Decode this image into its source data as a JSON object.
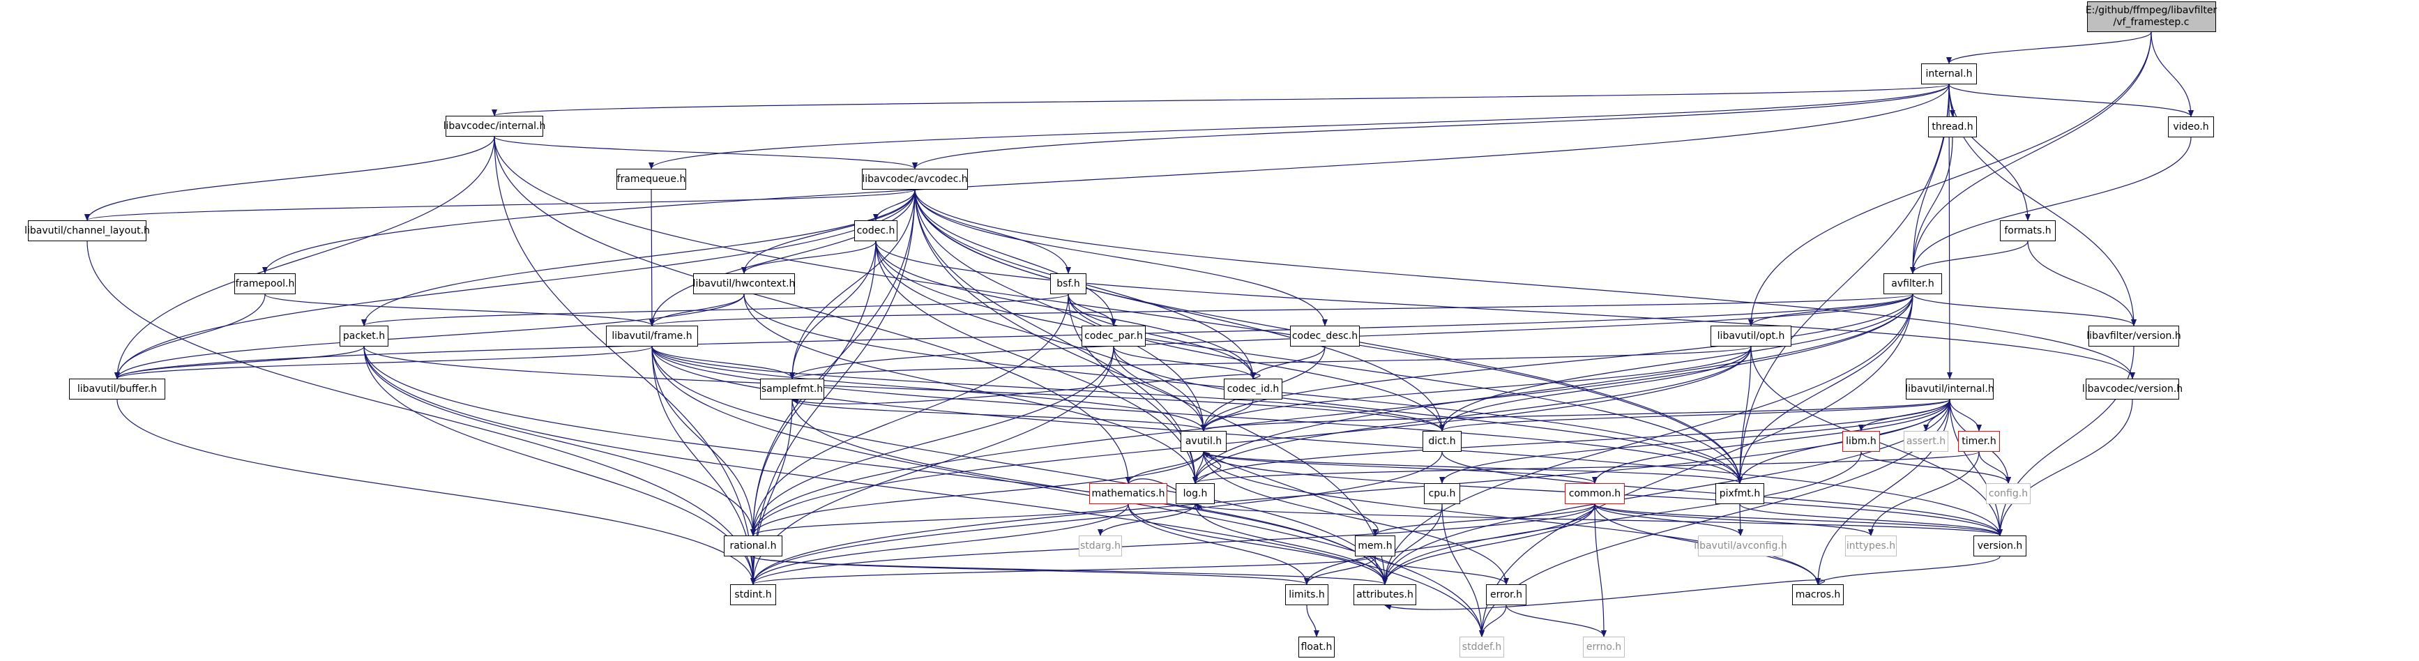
{
  "graph": {
    "root_label_line1": "E:/github/ffmpeg/libavfilter",
    "root_label_line2": "/vf_framestep.c",
    "edge_color": "#191970",
    "root_fill": "#bfbfbf",
    "truncated_border": "#ff0000",
    "external_border": "#bfbfbf",
    "nodes": [
      {
        "id": "root",
        "label": "E:/github/ffmpeg/libavfilter/vf_framestep.c",
        "kind": "root"
      },
      {
        "id": "internal_h",
        "label": "internal.h",
        "kind": "doc"
      },
      {
        "id": "avcodec_internal",
        "label": "libavcodec/internal.h",
        "kind": "doc"
      },
      {
        "id": "thread_h",
        "label": "thread.h",
        "kind": "doc"
      },
      {
        "id": "video_h",
        "label": "video.h",
        "kind": "doc"
      },
      {
        "id": "framequeue_h",
        "label": "framequeue.h",
        "kind": "doc"
      },
      {
        "id": "avcodec_h",
        "label": "libavcodec/avcodec.h",
        "kind": "doc"
      },
      {
        "id": "channel_layout",
        "label": "libavutil/channel_layout.h",
        "kind": "doc"
      },
      {
        "id": "codec_h",
        "label": "codec.h",
        "kind": "doc"
      },
      {
        "id": "formats_h",
        "label": "formats.h",
        "kind": "doc"
      },
      {
        "id": "framepool_h",
        "label": "framepool.h",
        "kind": "doc"
      },
      {
        "id": "hwcontext_h",
        "label": "libavutil/hwcontext.h",
        "kind": "doc"
      },
      {
        "id": "bsf_h",
        "label": "bsf.h",
        "kind": "doc"
      },
      {
        "id": "avfilter_h",
        "label": "avfilter.h",
        "kind": "doc"
      },
      {
        "id": "packet_h",
        "label": "packet.h",
        "kind": "doc"
      },
      {
        "id": "frame_h",
        "label": "libavutil/frame.h",
        "kind": "doc"
      },
      {
        "id": "codec_par",
        "label": "codec_par.h",
        "kind": "doc"
      },
      {
        "id": "codec_desc",
        "label": "codec_desc.h",
        "kind": "doc"
      },
      {
        "id": "opt_h",
        "label": "libavutil/opt.h",
        "kind": "doc"
      },
      {
        "id": "lavfi_version",
        "label": "libavfilter/version.h",
        "kind": "doc"
      },
      {
        "id": "buffer_h",
        "label": "libavutil/buffer.h",
        "kind": "doc"
      },
      {
        "id": "samplefmt_h",
        "label": "samplefmt.h",
        "kind": "doc"
      },
      {
        "id": "codec_id",
        "label": "codec_id.h",
        "kind": "doc"
      },
      {
        "id": "lavc_version",
        "label": "libavcodec/version.h",
        "kind": "doc"
      },
      {
        "id": "lavu_internal",
        "label": "libavutil/internal.h",
        "kind": "doc"
      },
      {
        "id": "avutil_h",
        "label": "avutil.h",
        "kind": "doc"
      },
      {
        "id": "dict_h",
        "label": "dict.h",
        "kind": "doc"
      },
      {
        "id": "libm_h",
        "label": "libm.h",
        "kind": "truncated"
      },
      {
        "id": "assert_h",
        "label": "assert.h",
        "kind": "external"
      },
      {
        "id": "timer_h",
        "label": "timer.h",
        "kind": "truncated"
      },
      {
        "id": "mathematics_h",
        "label": "mathematics.h",
        "kind": "truncated"
      },
      {
        "id": "log_h",
        "label": "log.h",
        "kind": "doc"
      },
      {
        "id": "cpu_h",
        "label": "cpu.h",
        "kind": "doc"
      },
      {
        "id": "common_h",
        "label": "common.h",
        "kind": "truncated"
      },
      {
        "id": "pixfmt_h",
        "label": "pixfmt.h",
        "kind": "doc"
      },
      {
        "id": "config_h",
        "label": "config.h",
        "kind": "external"
      },
      {
        "id": "rational_h",
        "label": "rational.h",
        "kind": "doc"
      },
      {
        "id": "stdarg_h",
        "label": "stdarg.h",
        "kind": "external"
      },
      {
        "id": "mem_h",
        "label": "mem.h",
        "kind": "doc"
      },
      {
        "id": "avconfig_h",
        "label": "libavutil/avconfig.h",
        "kind": "external"
      },
      {
        "id": "inttypes_h",
        "label": "inttypes.h",
        "kind": "external"
      },
      {
        "id": "version_h",
        "label": "version.h",
        "kind": "doc"
      },
      {
        "id": "stdint_h",
        "label": "stdint.h",
        "kind": "doc"
      },
      {
        "id": "limits_h",
        "label": "limits.h",
        "kind": "doc"
      },
      {
        "id": "attributes_h",
        "label": "attributes.h",
        "kind": "doc"
      },
      {
        "id": "error_h",
        "label": "error.h",
        "kind": "doc"
      },
      {
        "id": "macros_h",
        "label": "macros.h",
        "kind": "doc"
      },
      {
        "id": "float_h",
        "label": "float.h",
        "kind": "doc"
      },
      {
        "id": "stddef_h",
        "label": "stddef.h",
        "kind": "external"
      },
      {
        "id": "errno_h",
        "label": "errno.h",
        "kind": "external"
      }
    ],
    "edges": [
      [
        "root",
        "internal_h"
      ],
      [
        "root",
        "video_h"
      ],
      [
        "root",
        "avfilter_h"
      ],
      [
        "root",
        "opt_h"
      ],
      [
        "internal_h",
        "avcodec_internal"
      ],
      [
        "internal_h",
        "thread_h"
      ],
      [
        "internal_h",
        "video_h"
      ],
      [
        "internal_h",
        "framequeue_h"
      ],
      [
        "internal_h",
        "avcodec_h"
      ],
      [
        "internal_h",
        "formats_h"
      ],
      [
        "internal_h",
        "framepool_h"
      ],
      [
        "internal_h",
        "avfilter_h"
      ],
      [
        "internal_h",
        "lavfi_version"
      ],
      [
        "internal_h",
        "lavu_internal"
      ],
      [
        "internal_h",
        "pixfmt_h"
      ],
      [
        "avcodec_internal",
        "avcodec_h"
      ],
      [
        "avcodec_internal",
        "channel_layout"
      ],
      [
        "avcodec_internal",
        "buffer_h"
      ],
      [
        "avcodec_internal",
        "mathematics_h"
      ],
      [
        "avcodec_internal",
        "pixfmt_h"
      ],
      [
        "avcodec_internal",
        "stdint_h"
      ],
      [
        "thread_h",
        "avfilter_h"
      ],
      [
        "video_h",
        "avfilter_h"
      ],
      [
        "formats_h",
        "avfilter_h"
      ],
      [
        "formats_h",
        "lavfi_version"
      ],
      [
        "framequeue_h",
        "frame_h"
      ],
      [
        "avcodec_h",
        "codec_h"
      ],
      [
        "avcodec_h",
        "bsf_h"
      ],
      [
        "avcodec_h",
        "codec_desc"
      ],
      [
        "avcodec_h",
        "codec_par"
      ],
      [
        "avcodec_h",
        "codec_id"
      ],
      [
        "avcodec_h",
        "packet_h"
      ],
      [
        "avcodec_h",
        "lavc_version"
      ],
      [
        "avcodec_h",
        "samplefmt_h"
      ],
      [
        "avcodec_h",
        "frame_h"
      ],
      [
        "avcodec_h",
        "hwcontext_h"
      ],
      [
        "avcodec_h",
        "buffer_h"
      ],
      [
        "avcodec_h",
        "dict_h"
      ],
      [
        "avcodec_h",
        "avutil_h"
      ],
      [
        "avcodec_h",
        "log_h"
      ],
      [
        "avcodec_h",
        "pixfmt_h"
      ],
      [
        "avcodec_h",
        "rational_h"
      ],
      [
        "avcodec_h",
        "attributes_h"
      ],
      [
        "avcodec_h",
        "channel_layout"
      ],
      [
        "avcodec_h",
        "stdint_h"
      ],
      [
        "channel_layout",
        "stdint_h"
      ],
      [
        "codec_h",
        "hwcontext_h"
      ],
      [
        "codec_h",
        "codec_id"
      ],
      [
        "codec_h",
        "samplefmt_h"
      ],
      [
        "codec_h",
        "pixfmt_h"
      ],
      [
        "codec_h",
        "log_h"
      ],
      [
        "codec_h",
        "rational_h"
      ],
      [
        "codec_h",
        "avutil_h"
      ],
      [
        "codec_h",
        "lavc_version"
      ],
      [
        "framepool_h",
        "frame_h"
      ],
      [
        "framepool_h",
        "buffer_h"
      ],
      [
        "hwcontext_h",
        "buffer_h"
      ],
      [
        "hwcontext_h",
        "frame_h"
      ],
      [
        "hwcontext_h",
        "log_h"
      ],
      [
        "hwcontext_h",
        "pixfmt_h"
      ],
      [
        "bsf_h",
        "codec_id"
      ],
      [
        "bsf_h",
        "codec_par"
      ],
      [
        "bsf_h",
        "packet_h"
      ],
      [
        "bsf_h",
        "dict_h"
      ],
      [
        "bsf_h",
        "log_h"
      ],
      [
        "bsf_h",
        "rational_h"
      ],
      [
        "avfilter_h",
        "frame_h"
      ],
      [
        "avfilter_h",
        "opt_h"
      ],
      [
        "avfilter_h",
        "samplefmt_h"
      ],
      [
        "avfilter_h",
        "lavfi_version"
      ],
      [
        "avfilter_h",
        "avutil_h"
      ],
      [
        "avfilter_h",
        "dict_h"
      ],
      [
        "avfilter_h",
        "log_h"
      ],
      [
        "avfilter_h",
        "pixfmt_h"
      ],
      [
        "avfilter_h",
        "rational_h"
      ],
      [
        "avfilter_h",
        "attributes_h"
      ],
      [
        "avfilter_h",
        "stddef_h"
      ],
      [
        "avfilter_h",
        "buffer_h"
      ],
      [
        "packet_h",
        "buffer_h"
      ],
      [
        "packet_h",
        "rational_h"
      ],
      [
        "packet_h",
        "attributes_h"
      ],
      [
        "packet_h",
        "dict_h"
      ],
      [
        "packet_h",
        "stdint_h"
      ],
      [
        "packet_h",
        "stddef_h"
      ],
      [
        "frame_h",
        "buffer_h"
      ],
      [
        "frame_h",
        "avutil_h"
      ],
      [
        "frame_h",
        "dict_h"
      ],
      [
        "frame_h",
        "rational_h"
      ],
      [
        "frame_h",
        "samplefmt_h"
      ],
      [
        "frame_h",
        "pixfmt_h"
      ],
      [
        "frame_h",
        "version_h"
      ],
      [
        "frame_h",
        "stdint_h"
      ],
      [
        "frame_h",
        "stddef_h"
      ],
      [
        "frame_h",
        "attributes_h"
      ],
      [
        "codec_par",
        "codec_id"
      ],
      [
        "codec_par",
        "avutil_h"
      ],
      [
        "codec_par",
        "pixfmt_h"
      ],
      [
        "codec_par",
        "rational_h"
      ],
      [
        "codec_par",
        "stdint_h"
      ],
      [
        "codec_desc",
        "codec_id"
      ],
      [
        "codec_desc",
        "avutil_h"
      ],
      [
        "opt_h",
        "rational_h"
      ],
      [
        "opt_h",
        "avutil_h"
      ],
      [
        "opt_h",
        "dict_h"
      ],
      [
        "opt_h",
        "log_h"
      ],
      [
        "opt_h",
        "pixfmt_h"
      ],
      [
        "opt_h",
        "samplefmt_h"
      ],
      [
        "opt_h",
        "version_h"
      ],
      [
        "lavfi_version",
        "version_h"
      ],
      [
        "lavc_version",
        "version_h"
      ],
      [
        "buffer_h",
        "stdint_h"
      ],
      [
        "samplefmt_h",
        "avutil_h"
      ],
      [
        "samplefmt_h",
        "attributes_h"
      ],
      [
        "samplefmt_h",
        "stdint_h"
      ],
      [
        "codec_id",
        "avutil_h"
      ],
      [
        "codec_id",
        "samplefmt_h"
      ],
      [
        "lavu_internal",
        "timer_h"
      ],
      [
        "lavu_internal",
        "libm_h"
      ],
      [
        "lavu_internal",
        "assert_h"
      ],
      [
        "lavu_internal",
        "config_h"
      ],
      [
        "lavu_internal",
        "dict_h"
      ],
      [
        "lavu_internal",
        "pixfmt_h"
      ],
      [
        "lavu_internal",
        "version_h"
      ],
      [
        "lavu_internal",
        "cpu_h"
      ],
      [
        "lavu_internal",
        "common_h"
      ],
      [
        "lavu_internal",
        "attributes_h"
      ],
      [
        "lavu_internal",
        "log_h"
      ],
      [
        "lavu_internal",
        "stdint_h"
      ],
      [
        "lavu_internal",
        "macros_h"
      ],
      [
        "lavu_internal",
        "stddef_h"
      ],
      [
        "lavu_internal",
        "avutil_h"
      ],
      [
        "avutil_h",
        "common_h"
      ],
      [
        "avutil_h",
        "error_h"
      ],
      [
        "avutil_h",
        "version_h"
      ],
      [
        "avutil_h",
        "macros_h"
      ],
      [
        "avutil_h",
        "mathematics_h"
      ],
      [
        "avutil_h",
        "rational_h"
      ],
      [
        "avutil_h",
        "log_h"
      ],
      [
        "avutil_h",
        "pixfmt_h"
      ],
      [
        "dict_h",
        "stdint_h"
      ],
      [
        "dict_h",
        "version_h"
      ],
      [
        "libm_h",
        "config_h"
      ],
      [
        "libm_h",
        "attributes_h"
      ],
      [
        "timer_h",
        "config_h"
      ],
      [
        "timer_h",
        "inttypes_h"
      ],
      [
        "timer_h",
        "log_h"
      ],
      [
        "mathematics_h",
        "stdint_h"
      ],
      [
        "mathematics_h",
        "limits_h"
      ],
      [
        "mathematics_h",
        "attributes_h"
      ],
      [
        "mathematics_h",
        "rational_h"
      ],
      [
        "mathematics_h",
        "log_h"
      ],
      [
        "log_h",
        "stdarg_h"
      ],
      [
        "log_h",
        "avutil_h"
      ],
      [
        "log_h",
        "attributes_h"
      ],
      [
        "log_h",
        "version_h"
      ],
      [
        "cpu_h",
        "attributes_h"
      ],
      [
        "cpu_h",
        "stddef_h"
      ],
      [
        "common_h",
        "errno_h"
      ],
      [
        "common_h",
        "inttypes_h"
      ],
      [
        "common_h",
        "limits_h"
      ],
      [
        "common_h",
        "stdint_h"
      ],
      [
        "common_h",
        "attributes_h"
      ],
      [
        "common_h",
        "macros_h"
      ],
      [
        "common_h",
        "version_h"
      ],
      [
        "common_h",
        "mem_h"
      ],
      [
        "common_h",
        "avconfig_h"
      ],
      [
        "pixfmt_h",
        "avconfig_h"
      ],
      [
        "pixfmt_h",
        "version_h"
      ],
      [
        "rational_h",
        "stdint_h"
      ],
      [
        "rational_h",
        "limits_h"
      ],
      [
        "rational_h",
        "attributes_h"
      ],
      [
        "mem_h",
        "limits_h"
      ],
      [
        "mem_h",
        "stdint_h"
      ],
      [
        "mem_h",
        "attributes_h"
      ],
      [
        "mem_h",
        "error_h"
      ],
      [
        "mem_h",
        "avutil_h"
      ],
      [
        "version_h",
        "macros_h"
      ],
      [
        "limits_h",
        "float_h"
      ],
      [
        "error_h",
        "errno_h"
      ],
      [
        "error_h",
        "stddef_h"
      ],
      [
        "macros_h",
        "attributes_h"
      ]
    ]
  }
}
